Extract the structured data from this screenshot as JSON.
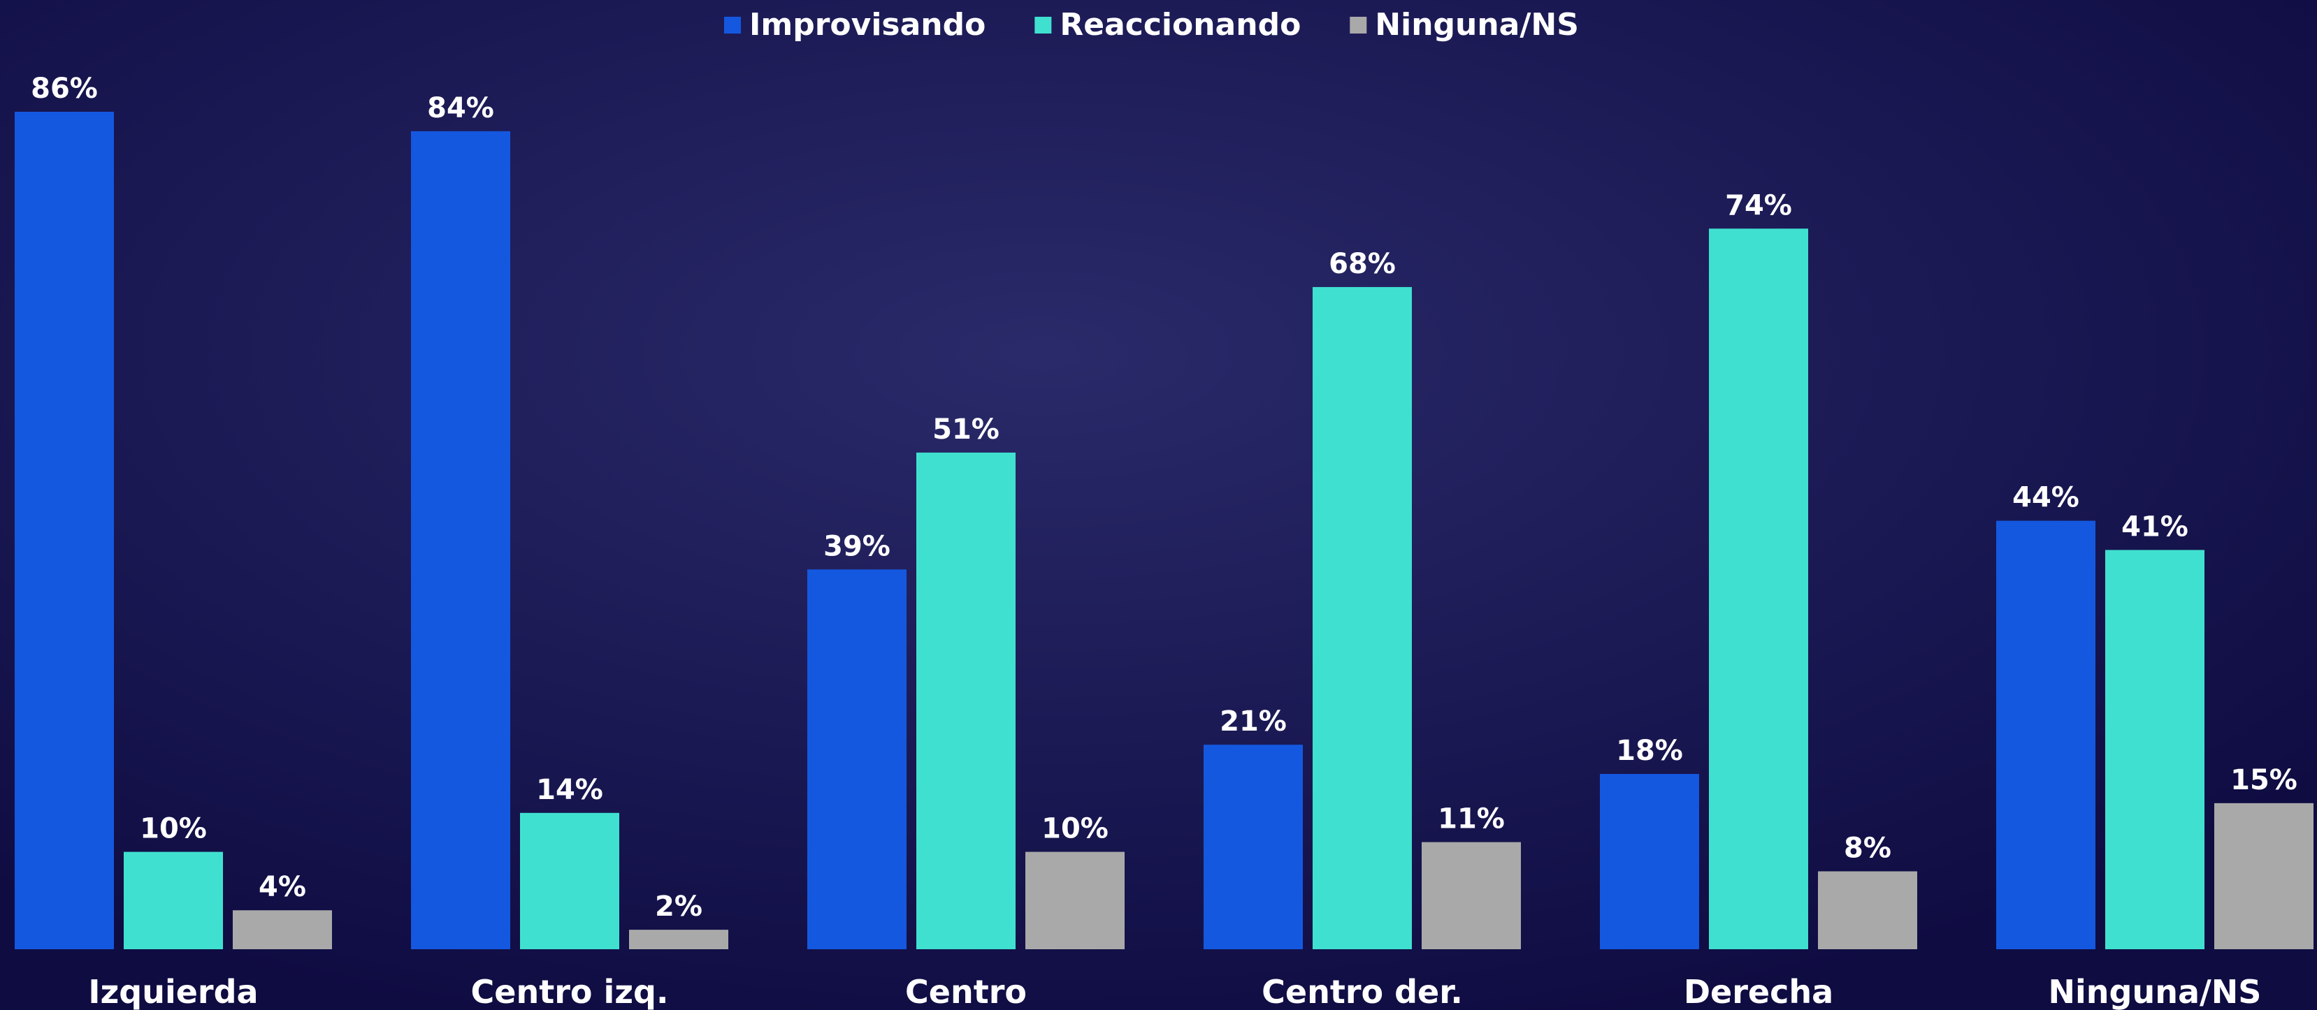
{
  "chart_data": {
    "type": "bar",
    "categories": [
      "Izquierda",
      "Centro izq.",
      "Centro",
      "Centro der.",
      "Derecha",
      "Ninguna/NS"
    ],
    "series": [
      {
        "name": "Improvisando",
        "color": "#1458e0",
        "values": [
          86,
          84,
          39,
          21,
          18,
          44
        ],
        "value_labels": [
          "86%",
          "84%",
          "39%",
          "21%",
          "18%",
          "44%"
        ]
      },
      {
        "name": "Reaccionando",
        "color": "#40e0d0",
        "values": [
          10,
          14,
          51,
          68,
          74,
          41
        ],
        "value_labels": [
          "10%",
          "14%",
          "51%",
          "68%",
          "74%",
          "41%"
        ]
      },
      {
        "name": "Ninguna/NS",
        "color": "#a9a9a9",
        "values": [
          4,
          2,
          10,
          11,
          8,
          15
        ],
        "value_labels": [
          "4%",
          "2%",
          "10%",
          "11%",
          "8%",
          "15%"
        ]
      }
    ],
    "legend": "top"
  }
}
